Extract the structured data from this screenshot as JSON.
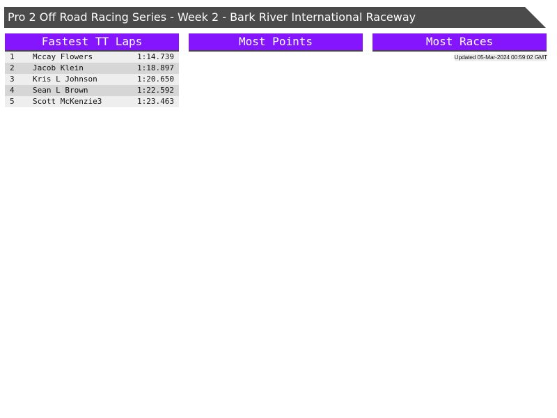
{
  "title": "Pro 2 Off Road Racing Series - Week 2 - Bark River International Raceway",
  "panels": {
    "fastest": {
      "title": "Fastest TT Laps",
      "rows": [
        {
          "pos": "1",
          "name": "Mccay Flowers",
          "time": "1:14.739"
        },
        {
          "pos": "2",
          "name": "Jacob Klein",
          "time": "1:18.897"
        },
        {
          "pos": "3",
          "name": "Kris L Johnson",
          "time": "1:20.650"
        },
        {
          "pos": "4",
          "name": "Sean L Brown",
          "time": "1:22.592"
        },
        {
          "pos": "5",
          "name": "Scott McKenzie3",
          "time": "1:23.463"
        }
      ]
    },
    "points": {
      "title": "Most Points"
    },
    "races": {
      "title": "Most Races"
    }
  },
  "updated": "Updated 05-Mar-2024 00:59:02 GMT",
  "colors": {
    "header": "#8415fc",
    "titlebar": "#4b4b4b"
  }
}
